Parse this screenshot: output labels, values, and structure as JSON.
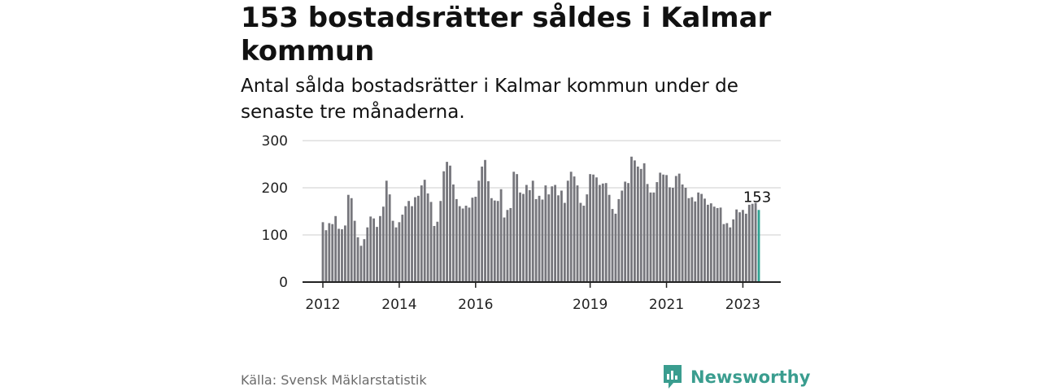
{
  "header": {
    "title": "153 bostadsrätter såldes i Kalmar kommun",
    "subtitle": "Antal sålda bostadsrätter i Kalmar kommun under de senaste tre månaderna."
  },
  "footer": {
    "source": "Källa: Svensk Mäklarstatistik",
    "brand": "Newsworthy"
  },
  "colors": {
    "bar": "#76767c",
    "highlight": "#2fa393",
    "grid": "#d6d6d6",
    "axis": "#222222",
    "brand": "#3a9d8f"
  },
  "chart_data": {
    "type": "bar",
    "title": "153 bostadsrätter såldes i Kalmar kommun",
    "subtitle": "Antal sålda bostadsrätter i Kalmar kommun under de senaste tre månaderna.",
    "xlabel": "",
    "ylabel": "",
    "ylim": [
      0,
      300
    ],
    "y_ticks": [
      0,
      100,
      200,
      300
    ],
    "x_tick_labels": [
      {
        "label": "2012",
        "index": 0
      },
      {
        "label": "2014",
        "index": 24
      },
      {
        "label": "2016",
        "index": 48
      },
      {
        "label": "2019",
        "index": 84
      },
      {
        "label": "2021",
        "index": 108
      },
      {
        "label": "2023",
        "index": 132
      }
    ],
    "start": "2012-01",
    "frequency": "monthly",
    "grid": true,
    "highlight_last": true,
    "last_label": "153",
    "values": [
      127,
      110,
      125,
      123,
      140,
      113,
      112,
      120,
      185,
      178,
      130,
      95,
      77,
      91,
      116,
      139,
      135,
      117,
      140,
      160,
      215,
      186,
      130,
      116,
      127,
      143,
      161,
      172,
      161,
      180,
      183,
      205,
      217,
      188,
      170,
      119,
      128,
      172,
      235,
      255,
      247,
      207,
      176,
      161,
      156,
      162,
      158,
      179,
      181,
      215,
      245,
      259,
      214,
      178,
      173,
      172,
      197,
      137,
      153,
      157,
      234,
      229,
      190,
      187,
      206,
      195,
      215,
      176,
      183,
      175,
      205,
      186,
      203,
      206,
      184,
      194,
      168,
      215,
      234,
      224,
      205,
      168,
      162,
      186,
      229,
      228,
      222,
      206,
      209,
      210,
      185,
      155,
      145,
      176,
      194,
      213,
      210,
      266,
      258,
      245,
      240,
      252,
      208,
      190,
      190,
      212,
      232,
      228,
      227,
      201,
      200,
      225,
      230,
      207,
      200,
      178,
      180,
      171,
      190,
      187,
      177,
      164,
      167,
      160,
      157,
      158,
      123,
      125,
      116,
      133,
      154,
      148,
      153,
      145,
      164,
      166,
      168,
      153
    ]
  }
}
